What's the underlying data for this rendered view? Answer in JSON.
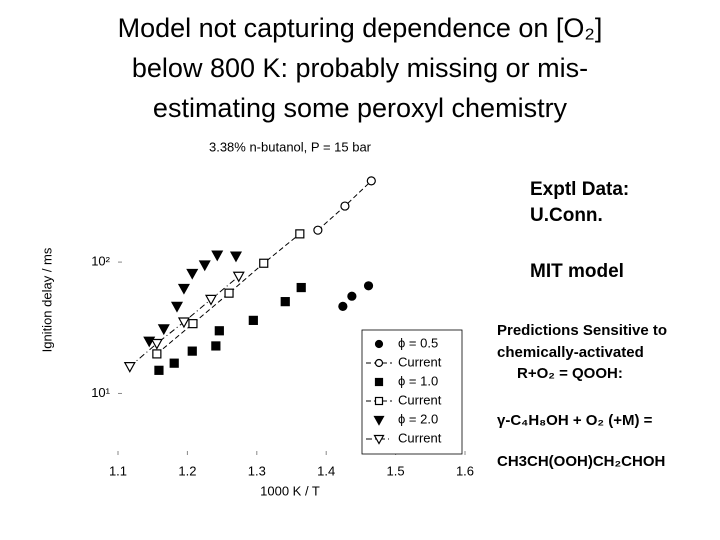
{
  "title_lines": [
    "Model not capturing dependence on [O₂]",
    "below 800 K: probably missing or mis-",
    "estimating some peroxyl chemistry"
  ],
  "annotations": [
    "Exptl Data:",
    "U.Conn.",
    "MIT model",
    "Predictions Sensitive to",
    "chemically-activated",
    "R+O₂ = QOOH:",
    "γ-C₄H₈OH + O₂ (+M) =",
    "CH3CH(OOH)CH₂CHOH"
  ],
  "chart_data": {
    "type": "scatter",
    "title": "3.38% n-butanol, P = 15 bar",
    "x_label": "1000 K / T",
    "y_label": "Ignition delay / ms",
    "xlim": [
      1.1,
      1.6
    ],
    "xticks": [
      1.1,
      1.2,
      1.3,
      1.4,
      1.5,
      1.6
    ],
    "ylim": [
      3.4,
      850
    ],
    "yticks": [
      {
        "value": 10,
        "label": "10¹"
      },
      {
        "value": 100,
        "label": "10²"
      }
    ],
    "log_y": true,
    "legend": "lower right",
    "series": [
      {
        "name": "ϕ = 0.5",
        "color": "#000000",
        "marker": "circle",
        "filled": true,
        "line": "none",
        "x": [
          1.424,
          1.437,
          1.461
        ],
        "values": [
          46,
          55,
          66
        ]
      },
      {
        "name": "Current",
        "color": "#000000",
        "marker": "circle",
        "filled": false,
        "line": "dashed",
        "x": [
          1.388,
          1.427,
          1.465
        ],
        "values": [
          175,
          267,
          415
        ]
      },
      {
        "name": "ϕ = 1.0",
        "color": "#000000",
        "marker": "square",
        "filled": true,
        "line": "none",
        "x": [
          1.159,
          1.181,
          1.207,
          1.241,
          1.246,
          1.295,
          1.341,
          1.364
        ],
        "values": [
          15,
          17,
          21,
          23,
          30,
          36,
          50,
          64
        ]
      },
      {
        "name": "Current",
        "color": "#000000",
        "marker": "square",
        "filled": false,
        "line": "dashed",
        "x": [
          1.156,
          1.208,
          1.26,
          1.31,
          1.362
        ],
        "values": [
          20,
          34,
          58,
          98,
          164
        ]
      },
      {
        "name": "ϕ = 2.0",
        "color": "#000000",
        "marker": "triangle",
        "filled": true,
        "line": "none",
        "x": [
          1.145,
          1.166,
          1.185,
          1.195,
          1.207,
          1.225,
          1.243,
          1.27
        ],
        "values": [
          25,
          31,
          46,
          63,
          82,
          95,
          113,
          111
        ]
      },
      {
        "name": "Current",
        "color": "#000000",
        "marker": "triangle",
        "filled": false,
        "line": "dashdot",
        "x": [
          1.117,
          1.156,
          1.195,
          1.234,
          1.274
        ],
        "values": [
          16,
          24,
          35,
          52,
          78
        ]
      }
    ]
  }
}
